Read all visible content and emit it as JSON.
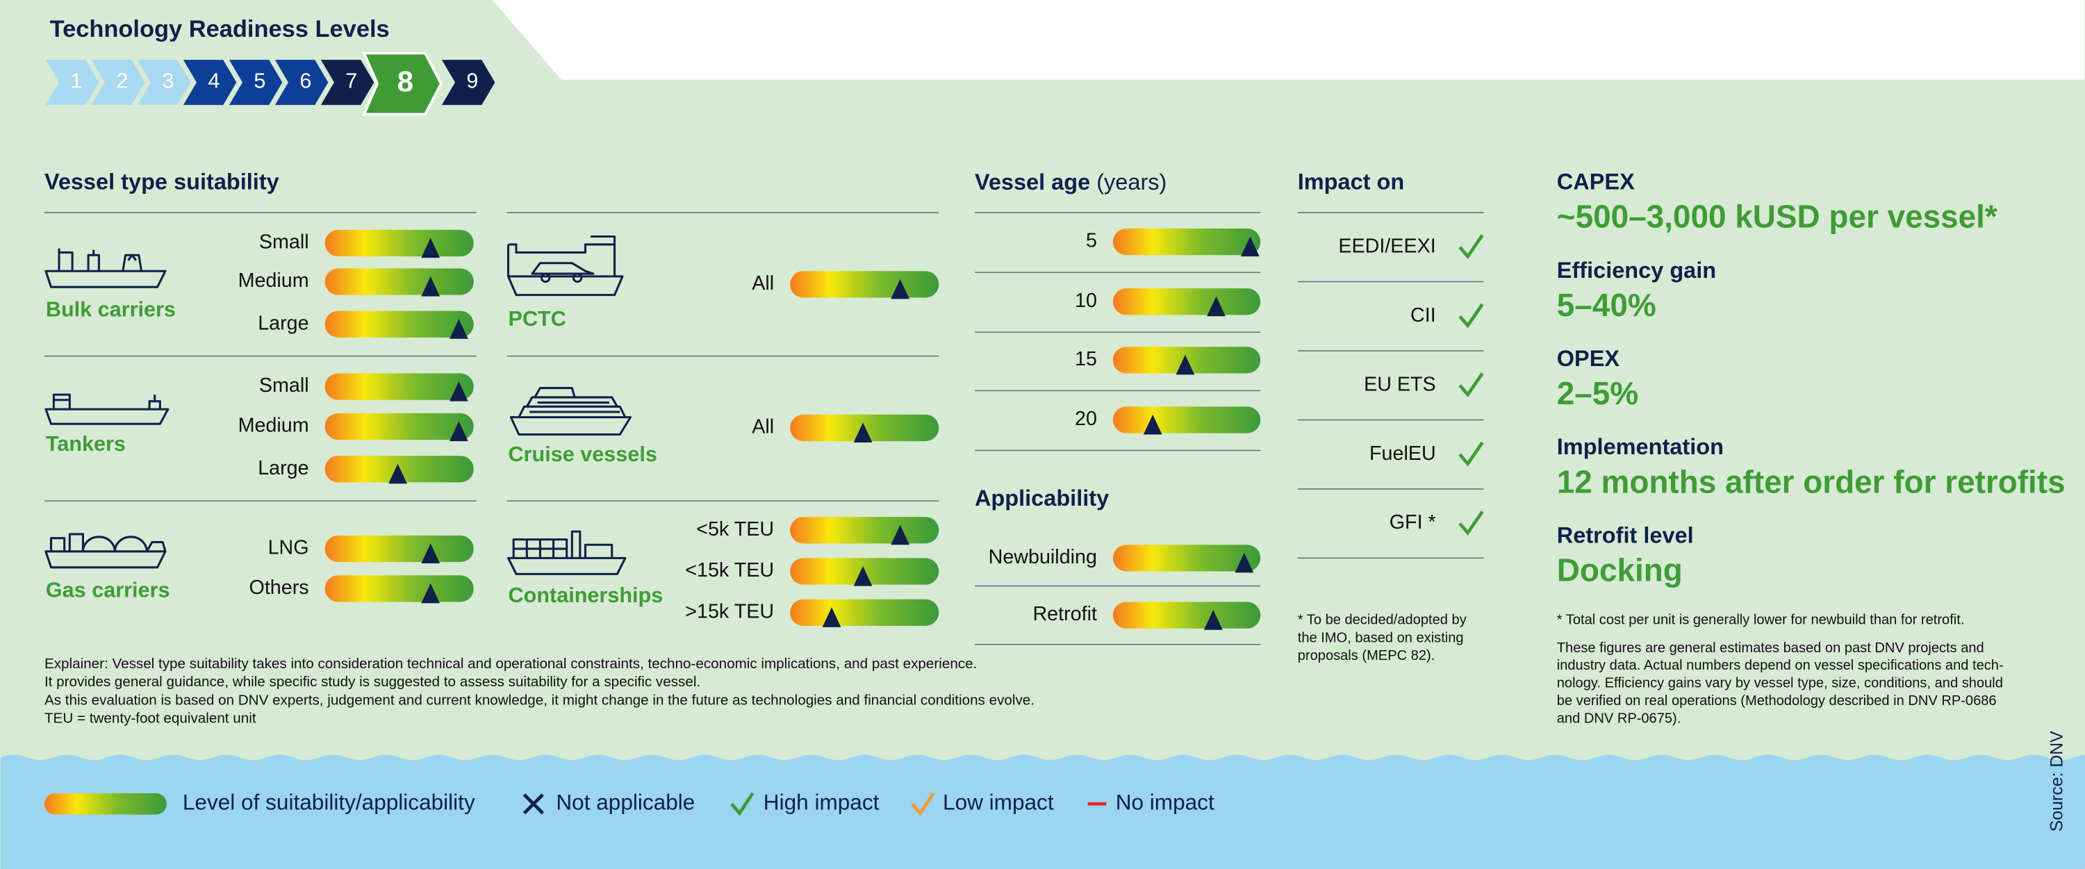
{
  "header": {
    "title": "Technology Readiness Levels",
    "trl_levels": [
      "1",
      "2",
      "3",
      "4",
      "5",
      "6",
      "7",
      "8",
      "9"
    ],
    "current_trl": "8"
  },
  "vessel_type_suitability": {
    "title": "Vessel type suitability",
    "groups": [
      {
        "name": "Bulk carriers",
        "rows": [
          {
            "label": "Small",
            "level": 0.71
          },
          {
            "label": "Medium",
            "level": 0.71
          },
          {
            "label": "Large",
            "level": 0.9
          }
        ]
      },
      {
        "name": "Tankers",
        "rows": [
          {
            "label": "Small",
            "level": 0.9
          },
          {
            "label": "Medium",
            "level": 0.9
          },
          {
            "label": "Large",
            "level": 0.49
          }
        ]
      },
      {
        "name": "Gas carriers",
        "rows": [
          {
            "label": "LNG",
            "level": 0.71
          },
          {
            "label": "Others",
            "level": 0.71
          }
        ]
      },
      {
        "name": "PCTC",
        "rows": [
          {
            "label": "All",
            "level": 0.74
          }
        ]
      },
      {
        "name": "Cruise vessels",
        "rows": [
          {
            "label": "All",
            "level": 0.49
          }
        ]
      },
      {
        "name": "Containerships",
        "rows": [
          {
            "label": "<5k TEU",
            "level": 0.74
          },
          {
            "label": "<15k TEU",
            "level": 0.49
          },
          {
            "label": ">15k TEU",
            "level": 0.28
          }
        ]
      }
    ]
  },
  "vessel_age": {
    "title": "Vessel age",
    "unit": "(years)",
    "rows": [
      {
        "label": "5",
        "level": 0.93
      },
      {
        "label": "10",
        "level": 0.7
      },
      {
        "label": "15",
        "level": 0.49
      },
      {
        "label": "20",
        "level": 0.27
      }
    ]
  },
  "applicability": {
    "title": "Applicability",
    "rows": [
      {
        "label": "Newbuilding",
        "level": 0.89
      },
      {
        "label": "Retrofit",
        "level": 0.68
      }
    ]
  },
  "impact": {
    "title": "Impact on",
    "rows": [
      {
        "label": "EEDI/EEXI",
        "impact": "high"
      },
      {
        "label": "CII",
        "impact": "high"
      },
      {
        "label": "EU ETS",
        "impact": "high"
      },
      {
        "label": "FuelEU",
        "impact": "high"
      },
      {
        "label": "GFI *",
        "impact": "high"
      }
    ],
    "footnote": [
      "* To be decided/adopted by",
      "the IMO, based on existing",
      "proposals (MEPC 82)."
    ]
  },
  "metrics": [
    {
      "label": "CAPEX",
      "value": "~500–3,000 kUSD per vessel*"
    },
    {
      "label": "Efficiency gain",
      "value": "5–40%"
    },
    {
      "label": "OPEX",
      "value": "2–5%"
    },
    {
      "label": "Implementation",
      "value": "12 months after order for retrofits"
    },
    {
      "label": "Retrofit level",
      "value": "Docking"
    }
  ],
  "notes": {
    "cost_note": "* Total cost per unit is generally lower for newbuild than for retrofit.",
    "paragraph": [
      "These figures are general estimates based on past DNV projects and",
      "industry data. Actual numbers depend on vessel specifications and tech-",
      "nology. Efficiency gains vary by vessel type, size, conditions, and should",
      "be verified on real operations (Methodology described in DNV RP-0686",
      "and DNV RP-0675)."
    ]
  },
  "explainer": [
    "Explainer: Vessel type suitability takes into consideration technical and operational constraints, techno-economic implications, and past experience.",
    "It provides general guidance, while specific study is suggested to assess suitability for a specific vessel.",
    "As this evaluation is based on DNV experts, judgement and current knowledge, it might change in the future as technologies and financial conditions evolve.",
    "TEU = twenty-foot equivalent unit"
  ],
  "legend": {
    "gauge": "Level of suitability/applicability",
    "not_applicable": "Not applicable",
    "high": "High impact",
    "low": "Low impact",
    "none": "No impact"
  },
  "source": "Source: DNV"
}
